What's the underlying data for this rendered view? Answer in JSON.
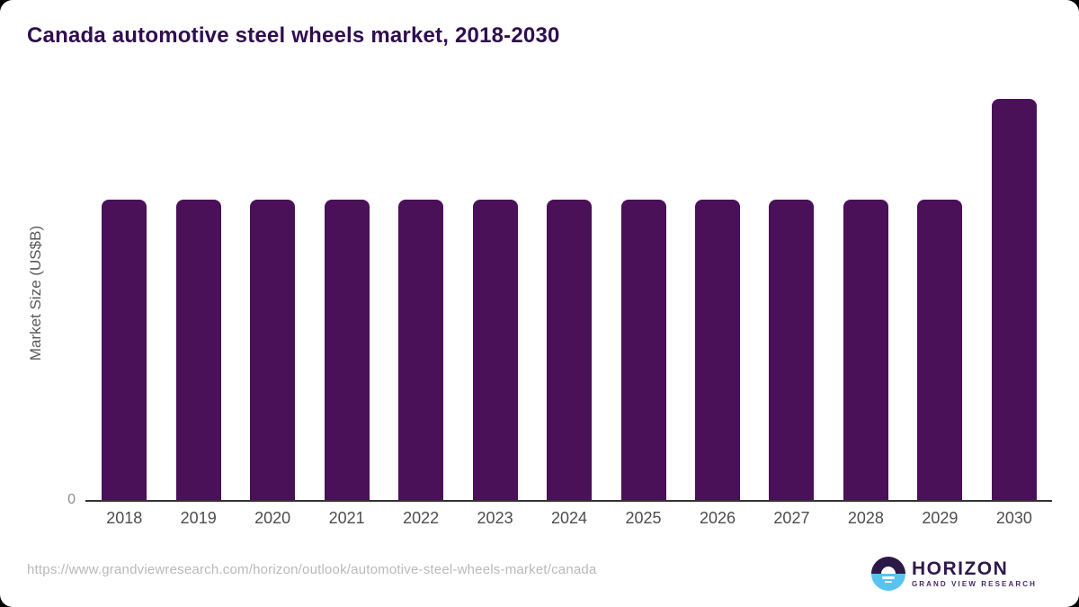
{
  "title": "Canada automotive steel wheels market, 2018-2030",
  "chart_data": {
    "type": "bar",
    "title": "Canada automotive steel wheels market, 2018-2030",
    "categories": [
      "2018",
      "2019",
      "2020",
      "2021",
      "2022",
      "2023",
      "2024",
      "2025",
      "2026",
      "2027",
      "2028",
      "2029",
      "2030"
    ],
    "values": [
      0.75,
      0.75,
      0.75,
      0.75,
      0.75,
      0.75,
      0.75,
      0.75,
      0.75,
      0.75,
      0.75,
      0.75,
      1.0
    ],
    "value_units": "relative scale; y-axis unlabeled except 0 tick, 2030 bar normalized to 1.0",
    "xlabel": "",
    "ylabel": "Market Size (US$B)",
    "ylim": [
      0,
      1.0
    ],
    "y_ticks": [
      "0"
    ],
    "grid": false,
    "legend": "none",
    "bar_color": "#4a1058"
  },
  "footer": {
    "source_url": "https://www.grandviewresearch.com/horizon/outlook/automotive-steel-wheels-market/canada"
  },
  "logo": {
    "name": "HORIZON",
    "subtitle": "GRAND VIEW RESEARCH"
  },
  "colors": {
    "title_text": "#300d4f",
    "bar": "#4a1058",
    "axis_line": "#333333",
    "x_tick_labels": "#4d4d4d",
    "y_axis_label": "#595959",
    "url_text": "#b9b9b9",
    "logo_dark_purple": "#2b1a47",
    "logo_light_blue": "#59c3ef"
  }
}
